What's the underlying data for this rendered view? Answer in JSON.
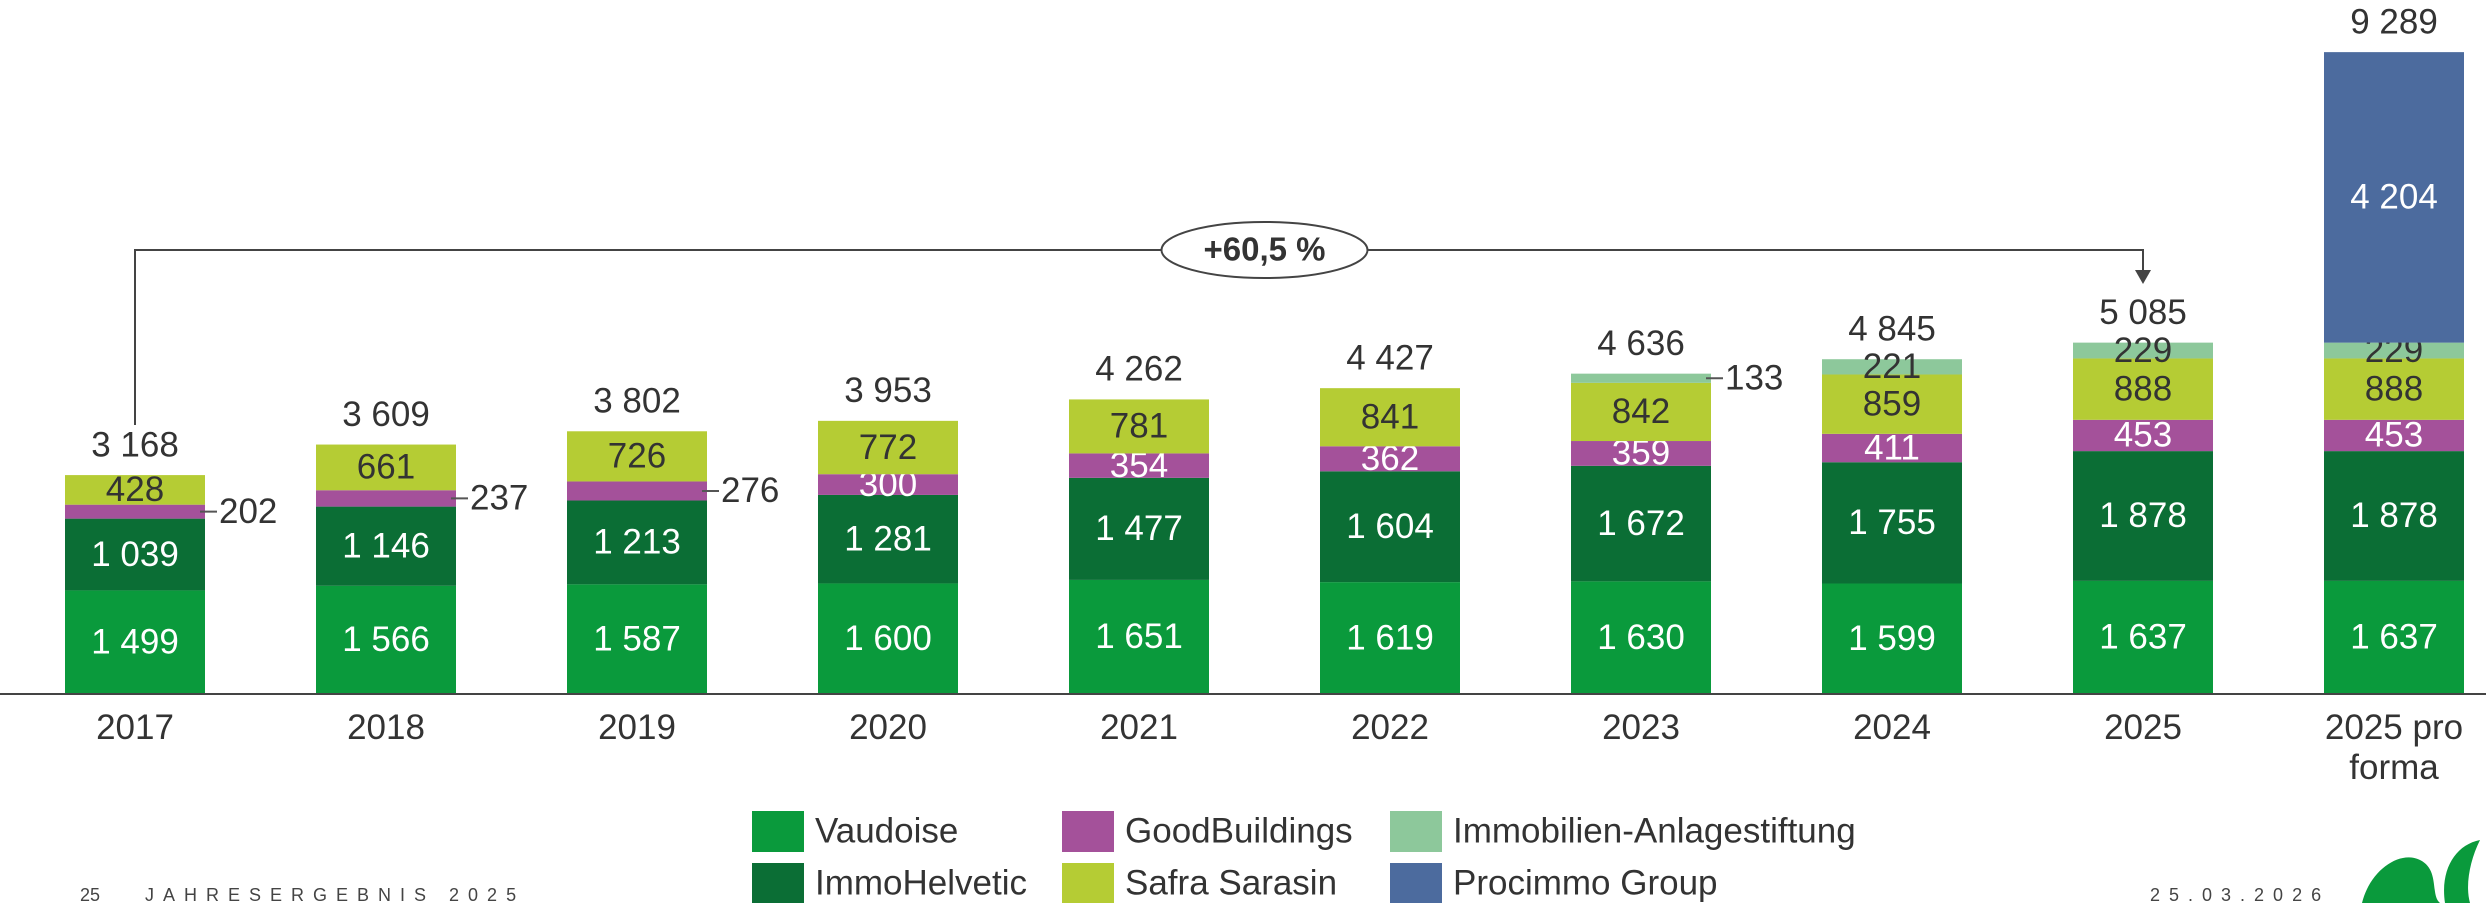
{
  "chart_data": {
    "type": "stacked_bar",
    "categories": [
      "2017",
      "2018",
      "2019",
      "2020",
      "2021",
      "2022",
      "2023",
      "2024",
      "2025",
      "2025 pro forma"
    ],
    "series": [
      {
        "name": "Vaudoise",
        "color": "#0a9a3c",
        "values": [
          1499,
          1566,
          1587,
          1600,
          1651,
          1619,
          1630,
          1599,
          1637,
          1637
        ],
        "value_labels": [
          "1 499",
          "1 566",
          "1 587",
          "1 600",
          "1 651",
          "1 619",
          "1 630",
          "1 599",
          "1 637",
          "1 637"
        ]
      },
      {
        "name": "ImmoHelvetic",
        "color": "#0b6e35",
        "values": [
          1039,
          1146,
          1213,
          1281,
          1477,
          1604,
          1672,
          1755,
          1878,
          1878
        ],
        "value_labels": [
          "1 039",
          "1 146",
          "1 213",
          "1 281",
          "1 477",
          "1 604",
          "1 672",
          "1 755",
          "1 878",
          "1 878"
        ]
      },
      {
        "name": "GoodBuildings",
        "color": "#a4519a",
        "values": [
          202,
          237,
          276,
          300,
          354,
          362,
          359,
          411,
          453,
          453
        ],
        "value_labels": [
          "202",
          "237",
          "276",
          "300",
          "354",
          "362",
          "359",
          "411",
          "453",
          "453"
        ]
      },
      {
        "name": "Safra Sarasin",
        "color": "#b5cc34",
        "values": [
          428,
          661,
          726,
          772,
          781,
          841,
          842,
          859,
          888,
          888
        ],
        "value_labels": [
          "428",
          "661",
          "726",
          "772",
          "781",
          "841",
          "842",
          "859",
          "888",
          "888"
        ]
      },
      {
        "name": "Immobilien-Anlagestiftung",
        "color": "#8dc89b",
        "values": [
          null,
          null,
          null,
          null,
          null,
          null,
          133,
          221,
          229,
          229
        ],
        "value_labels": [
          null,
          null,
          null,
          null,
          null,
          null,
          "133",
          "221",
          "229",
          "229"
        ]
      },
      {
        "name": "Procimmo Group",
        "color": "#4c6b9e",
        "values": [
          null,
          null,
          null,
          null,
          null,
          null,
          null,
          null,
          null,
          4204
        ],
        "value_labels": [
          null,
          null,
          null,
          null,
          null,
          null,
          null,
          null,
          null,
          "4 204"
        ]
      }
    ],
    "totals": [
      3168,
      3609,
      3802,
      3953,
      4262,
      4427,
      4636,
      4845,
      5085,
      9289
    ],
    "total_labels": [
      "3 168",
      "3 609",
      "3 802",
      "3 953",
      "4 262",
      "4 427",
      "4 636",
      "4 845",
      "5 085",
      "9 289"
    ],
    "annotation": "+60,5 %",
    "ylim": [
      0,
      10000
    ]
  },
  "footer": {
    "page": "25",
    "title": "JAHRESERGEBNIS 2025",
    "date": "25.03.2026"
  }
}
